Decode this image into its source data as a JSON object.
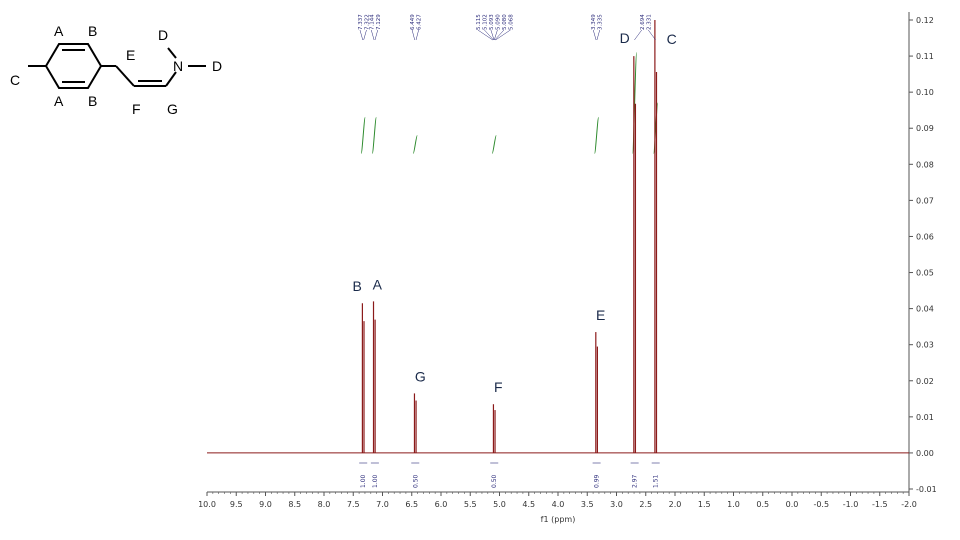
{
  "chart_data": {
    "type": "line",
    "xlabel": "f1 (ppm)",
    "ylabel": "",
    "xlim": [
      10.0,
      -2.0
    ],
    "ylim": [
      -0.01,
      0.12
    ],
    "x_ticks": [
      "10.0",
      "9.5",
      "9.0",
      "8.5",
      "8.0",
      "7.5",
      "7.0",
      "6.5",
      "6.0",
      "5.5",
      "5.0",
      "4.5",
      "4.0",
      "3.5",
      "3.0",
      "2.5",
      "2.0",
      "1.5",
      "1.0",
      "0.5",
      "0.0",
      "-0.5",
      "-1.0",
      "-1.5",
      "-2.0"
    ],
    "y_ticks": [
      "0.12",
      "0.11",
      "0.10",
      "0.09",
      "0.08",
      "0.07",
      "0.06",
      "0.05",
      "0.04",
      "0.03",
      "0.02",
      "0.01",
      "0.00",
      "-0.01"
    ],
    "peaks": [
      {
        "label": "B",
        "x": 7.33,
        "y": 0.0415
      },
      {
        "label": "A",
        "x": 7.14,
        "y": 0.042
      },
      {
        "label": "G",
        "x": 6.44,
        "y": 0.0165
      },
      {
        "label": "F",
        "x": 5.09,
        "y": 0.0135
      },
      {
        "label": "E",
        "x": 3.34,
        "y": 0.0335
      },
      {
        "label": "D",
        "x": 2.69,
        "y": 0.11
      },
      {
        "label": "C",
        "x": 2.33,
        "y": 0.12
      }
    ],
    "shift_labels": [
      {
        "x": 7.337,
        "text": "7.337"
      },
      {
        "x": 7.322,
        "text": "7.322"
      },
      {
        "x": 7.144,
        "text": "7.144"
      },
      {
        "x": 7.129,
        "text": "7.129"
      },
      {
        "x": 6.449,
        "text": "6.449"
      },
      {
        "x": 6.427,
        "text": "6.427"
      },
      {
        "x": 5.115,
        "text": "5.115"
      },
      {
        "x": 5.102,
        "text": "5.102"
      },
      {
        "x": 5.093,
        "text": "5.093"
      },
      {
        "x": 5.09,
        "text": "5.090"
      },
      {
        "x": 5.08,
        "text": "5.080"
      },
      {
        "x": 5.068,
        "text": "5.068"
      },
      {
        "x": 3.349,
        "text": "3.349"
      },
      {
        "x": 3.335,
        "text": "3.335"
      },
      {
        "x": 2.694,
        "text": "2.694"
      },
      {
        "x": 2.331,
        "text": "2.331"
      }
    ],
    "integrations": [
      {
        "x": 7.33,
        "text": "1.00"
      },
      {
        "x": 7.13,
        "text": "1.00"
      },
      {
        "x": 6.44,
        "text": "0.50"
      },
      {
        "x": 5.09,
        "text": "0.50"
      },
      {
        "x": 3.34,
        "text": "0.99"
      },
      {
        "x": 2.69,
        "text": "2.97"
      },
      {
        "x": 2.33,
        "text": "1.51"
      }
    ],
    "colors": {
      "spectrum": "#8b1a1a",
      "integral": "#2e8b2e",
      "axis": "#555555"
    }
  },
  "molecule": {
    "labels": [
      "A",
      "B",
      "C",
      "A",
      "B",
      "E",
      "F",
      "D",
      "N",
      "D",
      "G"
    ]
  }
}
